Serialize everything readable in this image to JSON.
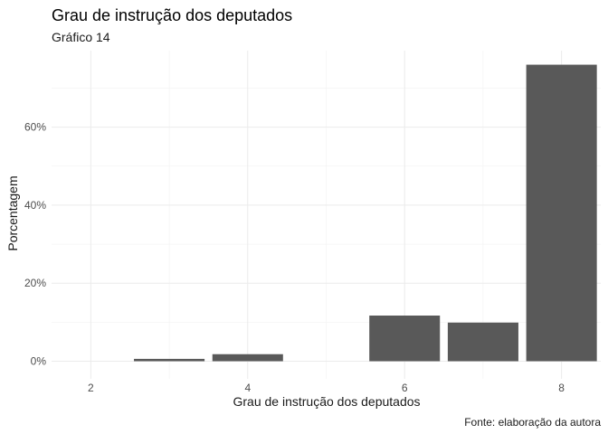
{
  "chart_data": {
    "type": "bar",
    "title": "Grau de instrução dos deputados",
    "subtitle": "Gráfico 14",
    "xlabel": "Grau de instrução dos deputados",
    "ylabel": "Porcentagem",
    "caption": "Fonte: elaboração da autora",
    "x_ticks": [
      2,
      4,
      6,
      8
    ],
    "y_ticks": [
      0,
      20,
      40,
      60
    ],
    "y_tick_labels": [
      "0%",
      "20%",
      "40%",
      "60%"
    ],
    "xlim": [
      1.5,
      8.5
    ],
    "ylim": [
      0,
      76
    ],
    "grid": true,
    "data": [
      {
        "x": 3,
        "y": 0.6
      },
      {
        "x": 4,
        "y": 1.8
      },
      {
        "x": 6,
        "y": 11.7
      },
      {
        "x": 7,
        "y": 9.9
      },
      {
        "x": 8,
        "y": 76.0
      }
    ]
  }
}
